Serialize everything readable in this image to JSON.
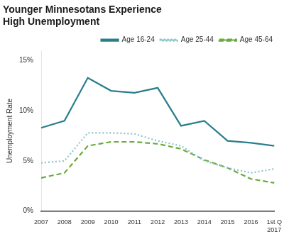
{
  "chart_data": {
    "type": "line",
    "title": "Younger Minnesotans Experience\nHigh Unemployment",
    "y_label": "Unemployment Rate",
    "categories": [
      "2007",
      "2008",
      "2009",
      "2010",
      "2011",
      "2012",
      "2013",
      "2014",
      "2015",
      "2016",
      "1st Q\n2017"
    ],
    "series": [
      {
        "name": "Age 16-24",
        "color": "#2a7e8c",
        "line_style": "solid",
        "values": [
          8.3,
          9.0,
          13.3,
          12.0,
          11.8,
          12.3,
          8.5,
          9.0,
          7.0,
          6.8,
          6.5
        ]
      },
      {
        "name": "Age 25-44",
        "color": "#8ac4cc",
        "line_style": "dotted",
        "values": [
          4.8,
          5.0,
          7.8,
          7.8,
          7.7,
          7.0,
          6.5,
          5.0,
          4.3,
          3.8,
          4.2
        ]
      },
      {
        "name": "Age 45-64",
        "color": "#6aaa3a",
        "line_style": "dashed",
        "values": [
          3.3,
          3.8,
          6.5,
          6.9,
          6.9,
          6.7,
          6.2,
          5.1,
          4.3,
          3.2,
          2.8
        ]
      }
    ],
    "ylim": [
      0,
      16
    ],
    "yticks": [
      {
        "value": 0,
        "label": "0%"
      },
      {
        "value": 5,
        "label": "5%"
      },
      {
        "value": 10,
        "label": "10%"
      },
      {
        "value": 15,
        "label": "15%"
      }
    ],
    "grid": false,
    "legend": "upper right"
  }
}
